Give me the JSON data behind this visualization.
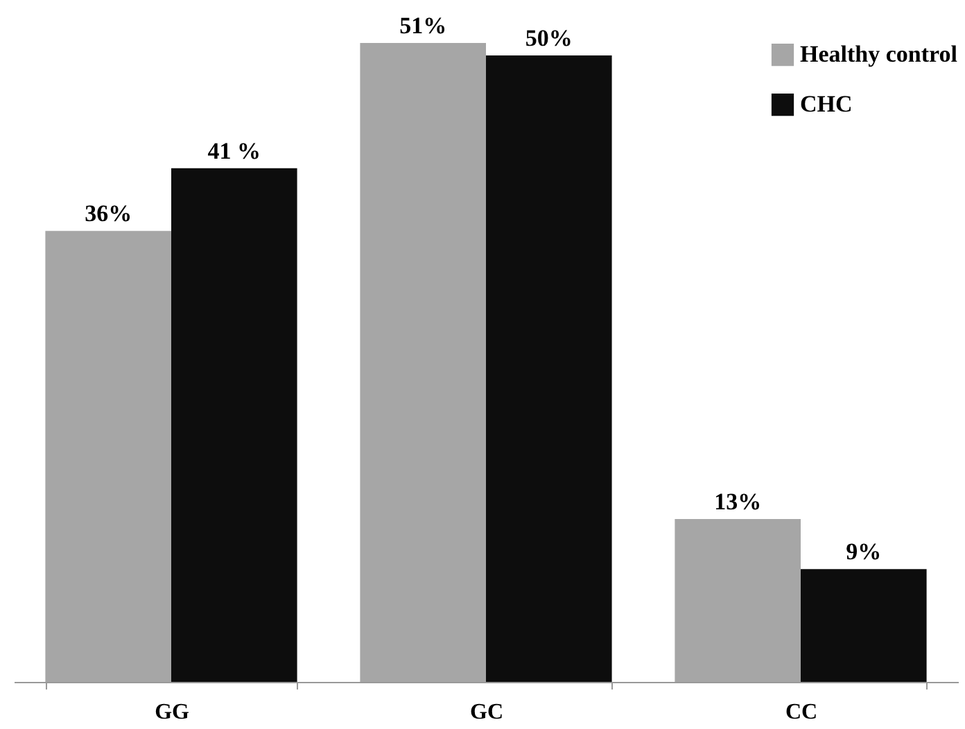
{
  "chart_data": {
    "type": "bar",
    "categories": [
      "GG",
      "GC",
      "CC"
    ],
    "series": [
      {
        "name": "Healthy control",
        "color": "#a6a6a6",
        "values": [
          36,
          51,
          13
        ],
        "value_labels": [
          "36%",
          "51%",
          "13%"
        ]
      },
      {
        "name": "CHC",
        "color": "#0d0d0d",
        "values": [
          41,
          50,
          9
        ],
        "value_labels": [
          "41 %",
          "50%",
          "9%"
        ]
      }
    ],
    "legend": "top right"
  }
}
